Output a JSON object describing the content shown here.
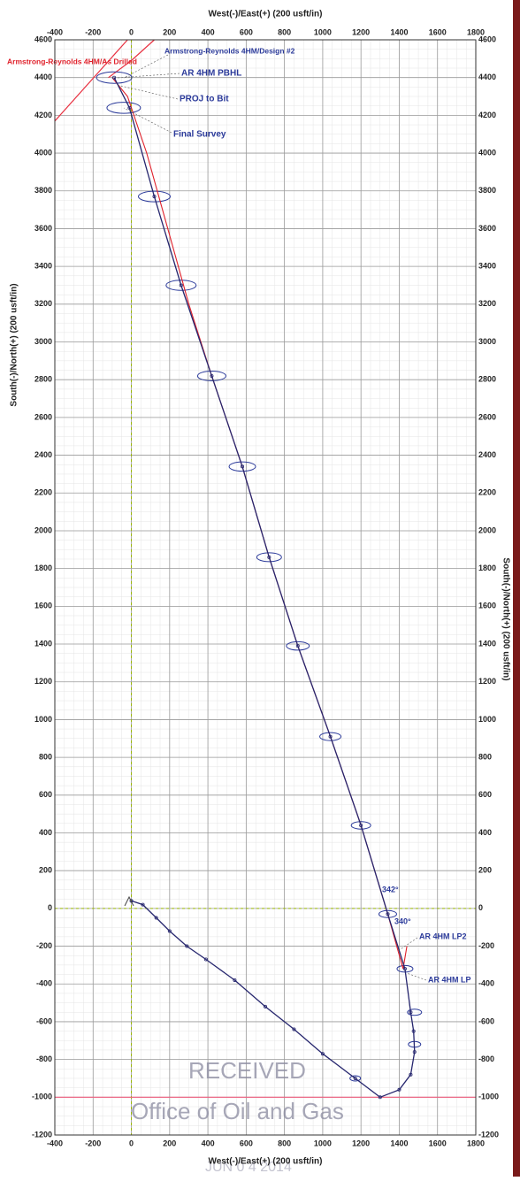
{
  "chart_data": {
    "type": "line",
    "xlabel": "West(-)/East(+) (200 usft/in)",
    "ylabel": "South(-)/North(+) (200 usft/in)",
    "xlim": [
      -400,
      1800
    ],
    "xticks": [
      -400,
      -200,
      0,
      200,
      400,
      600,
      800,
      1000,
      1200,
      1400,
      1600,
      1800
    ],
    "ylim": [
      -1200,
      4600
    ],
    "yticks": [
      -1200,
      -1000,
      -800,
      -600,
      -400,
      -200,
      0,
      200,
      400,
      600,
      800,
      1000,
      1200,
      1400,
      1600,
      1800,
      2000,
      2200,
      2400,
      2600,
      2800,
      3000,
      3200,
      3400,
      3600,
      3800,
      4000,
      4200,
      4400,
      4600
    ],
    "grid": true,
    "series": [
      {
        "name": "Armstrong-Reynolds 4HM/Design #2",
        "color": "#26266e",
        "x": [
          0,
          60,
          130,
          200,
          290,
          390,
          540,
          700,
          850,
          1000,
          1170,
          1300,
          1400,
          1460,
          1480,
          1475,
          1460,
          1430,
          1340,
          1200,
          1040,
          870,
          720,
          580,
          420,
          260,
          120,
          -10,
          -90
        ],
        "values": [
          40,
          20,
          -50,
          -120,
          -200,
          -270,
          -380,
          -520,
          -640,
          -770,
          -900,
          -1000,
          -960,
          -880,
          -760,
          -650,
          -550,
          -320,
          -30,
          440,
          910,
          1390,
          1860,
          2340,
          2820,
          3300,
          3770,
          4240,
          4400
        ]
      },
      {
        "name": "Armstrong-Reynolds 4HM/As Drilled",
        "color": "#e0202a",
        "x": [
          1440,
          1420,
          1340,
          1200,
          1040,
          870,
          720,
          580,
          420,
          300,
          190,
          80,
          -20,
          -100
        ],
        "values": [
          -200,
          -320,
          -30,
          440,
          910,
          1390,
          1860,
          2340,
          2820,
          3200,
          3600,
          4000,
          4300,
          4400
        ]
      }
    ],
    "error_ellipses": {
      "color": "#2b3a9a",
      "x": [
        1170,
        1480,
        1480,
        1430,
        1340,
        1200,
        1040,
        870,
        720,
        580,
        420,
        260,
        120,
        -40,
        -90
      ],
      "values": [
        -900,
        -720,
        -550,
        -320,
        -30,
        440,
        910,
        1390,
        1860,
        2340,
        2820,
        3300,
        3770,
        4240,
        4400
      ]
    },
    "boundaries": [
      {
        "color": "#f06080",
        "x": [
          -400,
          1800
        ],
        "values": [
          -1000,
          -1000
        ]
      },
      {
        "color": "#e83040",
        "x": [
          -400,
          -20
        ],
        "values": [
          4170,
          4600
        ]
      },
      {
        "color": "#e83040",
        "x": [
          -120,
          0,
          120
        ],
        "values": [
          4400,
          4490,
          4600
        ]
      }
    ],
    "annotations": [
      {
        "text": "AR 4HM PBHL",
        "color": "#2b3a9a"
      },
      {
        "text": "PROJ to Bit",
        "color": "#2b3a9a"
      },
      {
        "text": "Final Survey",
        "color": "#2b3a9a"
      },
      {
        "text": "342°",
        "color": "#2b3a9a"
      },
      {
        "text": "340°",
        "color": "#2b3a9a"
      },
      {
        "text": "AR 4HM LP2",
        "color": "#2b3a9a"
      },
      {
        "text": "AR 4HM LP",
        "color": "#2b3a9a"
      },
      {
        "text": "RECEIVED",
        "color": "#8a8aa0"
      },
      {
        "text": "Office of Oil and Gas",
        "color": "#8a8aa0"
      },
      {
        "text": "JUN 0 4 2014",
        "color": "#b0b0c0"
      }
    ]
  }
}
